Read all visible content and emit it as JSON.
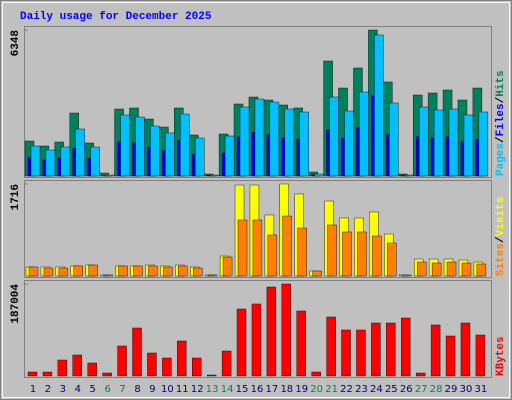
{
  "chart_data": [
    {
      "type": "bar",
      "title": "Daily usage for December 2025",
      "ylim": [
        0,
        6348
      ],
      "yticks": [
        6348
      ],
      "legend_separator": "/",
      "series": [
        {
          "name": "Hits",
          "color": "#00805c",
          "values": [
            1522,
            1304,
            1478,
            2739,
            1435,
            130,
            2913,
            2957,
            2478,
            2130,
            2957,
            1783,
            87,
            1826,
            3131,
            3435,
            3304,
            3087,
            2957,
            174,
            5000,
            3826,
            4696,
            6348,
            4087,
            87,
            3522,
            3609,
            3739,
            3304,
            3826
          ]
        },
        {
          "name": "Files",
          "color": "#0000ff",
          "values": [
            800,
            700,
            780,
            1200,
            760,
            30,
            1500,
            1450,
            1250,
            1100,
            1550,
            950,
            30,
            1000,
            1700,
            1900,
            1800,
            1650,
            1600,
            60,
            2000,
            1650,
            2100,
            3500,
            1800,
            30,
            1700,
            1650,
            1700,
            1500,
            1600
          ]
        },
        {
          "name": "Pages",
          "color": "#00c0ff",
          "values": [
            1304,
            1130,
            1261,
            2043,
            1261,
            43,
            2652,
            2565,
            2174,
            1870,
            2696,
            1652,
            43,
            1739,
            3000,
            3348,
            3217,
            2913,
            2783,
            87,
            3435,
            2826,
            3652,
            6130,
            3174,
            43,
            3000,
            2870,
            2913,
            2652,
            2783
          ]
        }
      ]
    },
    {
      "type": "bar",
      "ylim": [
        0,
        1716
      ],
      "yticks": [
        1716
      ],
      "legend_separator": "/",
      "series": [
        {
          "name": "Visits",
          "color": "#ffff00",
          "values": [
            168,
            168,
            168,
            187,
            205,
            19,
            187,
            187,
            205,
            187,
            205,
            168,
            19,
            373,
            1697,
            1697,
            1138,
            1716,
            1530,
            93,
            1399,
            1082,
            1082,
            1194,
            783,
            19,
            317,
            317,
            317,
            298,
            261
          ]
        },
        {
          "name": "Sites",
          "color": "#ff8000",
          "values": [
            168,
            149,
            149,
            187,
            205,
            19,
            187,
            187,
            187,
            168,
            187,
            149,
            19,
            354,
            1045,
            1045,
            765,
            1119,
            895,
            93,
            951,
            821,
            821,
            746,
            615,
            19,
            261,
            242,
            261,
            242,
            224
          ]
        }
      ]
    },
    {
      "type": "bar",
      "ylim": [
        0,
        187004
      ],
      "yticks": [
        187004
      ],
      "series": [
        {
          "name": "KBytes",
          "color": "#ff0000",
          "values": [
            8134,
            8134,
            32533,
            42700,
            26434,
            6100,
            61000,
            97600,
            46767,
            36600,
            71167,
            36600,
            2033,
            50834,
            136236,
            146402,
            180970,
            187004,
            132169,
            8134,
            119969,
            93535,
            93535,
            107768,
            107768,
            117935,
            6100,
            103701,
            81335,
            107768,
            83368
          ]
        }
      ],
      "categories": [
        "1",
        "2",
        "3",
        "4",
        "5",
        "6",
        "7",
        "8",
        "9",
        "10",
        "11",
        "12",
        "13",
        "14",
        "15",
        "16",
        "17",
        "18",
        "19",
        "20",
        "21",
        "22",
        "23",
        "24",
        "25",
        "26",
        "27",
        "28",
        "29",
        "30",
        "31"
      ],
      "label_colors": [
        "#000080",
        "#000080",
        "#000080",
        "#000080",
        "#000080",
        "#00805c",
        "#00805c",
        "#000080",
        "#000080",
        "#000080",
        "#000080",
        "#000080",
        "#00805c",
        "#00805c",
        "#000080",
        "#000080",
        "#000080",
        "#000080",
        "#000080",
        "#00805c",
        "#00805c",
        "#000080",
        "#000080",
        "#000080",
        "#000080",
        "#000080",
        "#00805c",
        "#00805c",
        "#000080",
        "#000080",
        "#000080"
      ]
    }
  ]
}
